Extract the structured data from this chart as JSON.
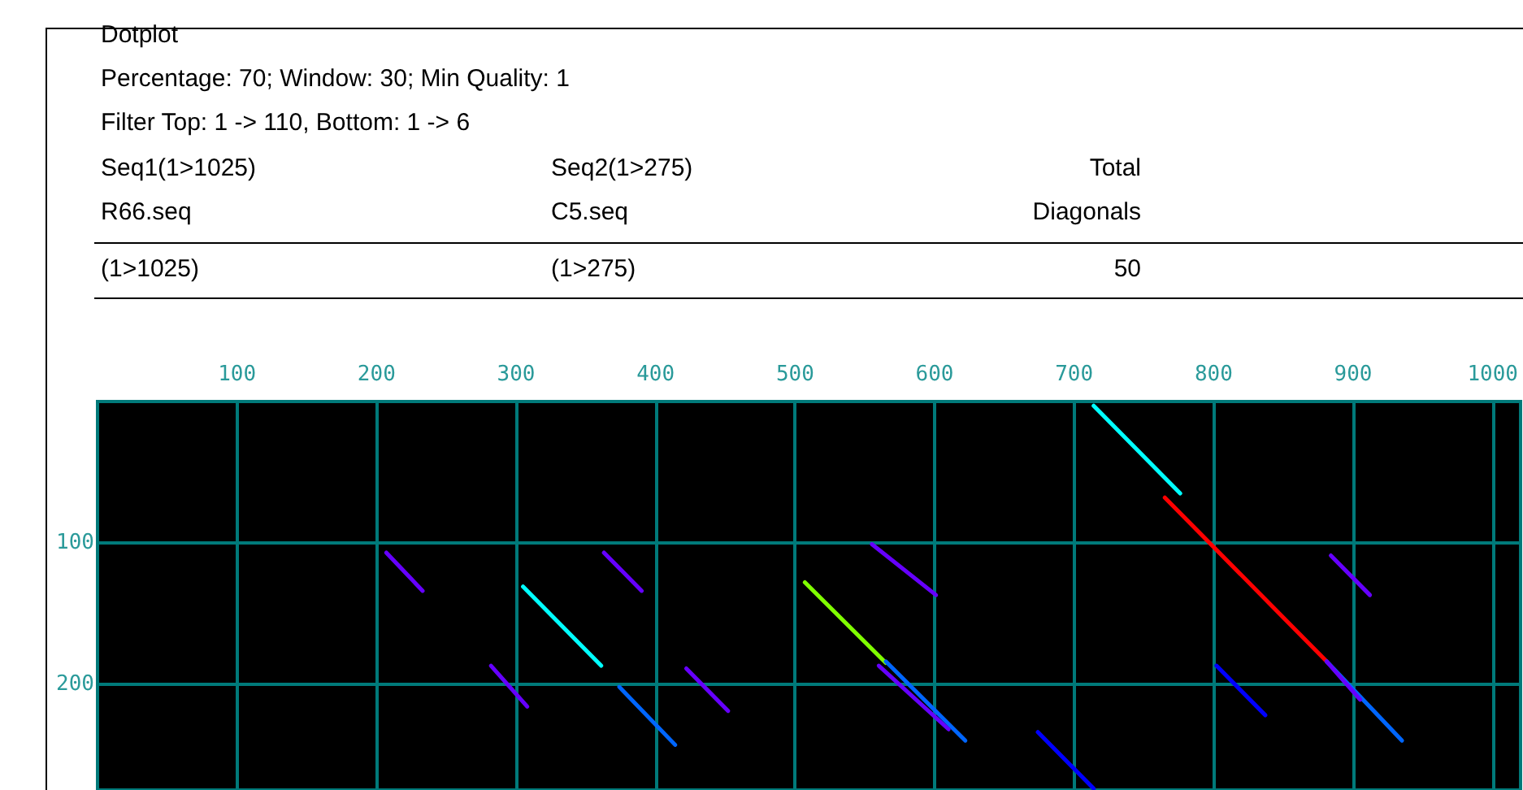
{
  "chart_data": {
    "type": "line",
    "title": "Dotplot",
    "annotations": [
      "Percentage: 70; Window: 30; Min Quality: 1",
      "Filter Top: 1 -> 110, Bottom: 1 -> 6",
      "Seq1(1>1025)",
      "Seq2(1>275)",
      "Total",
      "R66.seq",
      "C5.seq",
      "Diagonals",
      "(1>1025)",
      "(1>275)",
      "50"
    ],
    "xlim": [
      0,
      1020
    ],
    "xticks": [
      100,
      200,
      300,
      400,
      500,
      600,
      700,
      800,
      900,
      1000
    ],
    "ylim": [
      275,
      0
    ],
    "yticks": [
      100,
      200
    ],
    "grid": true,
    "marker": "none",
    "line_style": "solid",
    "series": [
      {
        "color": "#6600ff",
        "x": [
          207,
          233
        ],
        "values": [
          107,
          134
        ]
      },
      {
        "color": "#00ffff",
        "x": [
          305,
          361
        ],
        "values": [
          131,
          187
        ]
      },
      {
        "color": "#6600ff",
        "x": [
          363,
          390
        ],
        "values": [
          107,
          134
        ]
      },
      {
        "color": "#6600ff",
        "x": [
          282,
          308
        ],
        "values": [
          187,
          216
        ]
      },
      {
        "color": "#0066ff",
        "x": [
          374,
          414
        ],
        "values": [
          202,
          243
        ]
      },
      {
        "color": "#6600ff",
        "x": [
          422,
          452
        ],
        "values": [
          189,
          219
        ]
      },
      {
        "color": "#80ff00",
        "x": [
          507,
          565
        ],
        "values": [
          128,
          185
        ]
      },
      {
        "color": "#6600ff",
        "x": [
          555,
          601
        ],
        "values": [
          101,
          137
        ]
      },
      {
        "color": "#0066ff",
        "x": [
          565,
          622
        ],
        "values": [
          184,
          240
        ]
      },
      {
        "color": "#6600ff",
        "x": [
          560,
          610
        ],
        "values": [
          187,
          232
        ]
      },
      {
        "color": "#0000ff",
        "x": [
          674,
          714
        ],
        "values": [
          234,
          274
        ]
      },
      {
        "color": "#00ffff",
        "x": [
          714,
          776
        ],
        "values": [
          3,
          65
        ]
      },
      {
        "color": "#ff0000",
        "x": [
          765,
          881
        ],
        "values": [
          68,
          184
        ]
      },
      {
        "color": "#6600ff",
        "x": [
          884,
          912
        ],
        "values": [
          109,
          137
        ]
      },
      {
        "color": "#0000ff",
        "x": [
          802,
          837
        ],
        "values": [
          187,
          222
        ]
      },
      {
        "color": "#0066ff",
        "x": [
          881,
          935
        ],
        "values": [
          184,
          240
        ]
      },
      {
        "color": "#6600ff",
        "x": [
          881,
          905
        ],
        "values": [
          184,
          211
        ]
      }
    ]
  }
}
